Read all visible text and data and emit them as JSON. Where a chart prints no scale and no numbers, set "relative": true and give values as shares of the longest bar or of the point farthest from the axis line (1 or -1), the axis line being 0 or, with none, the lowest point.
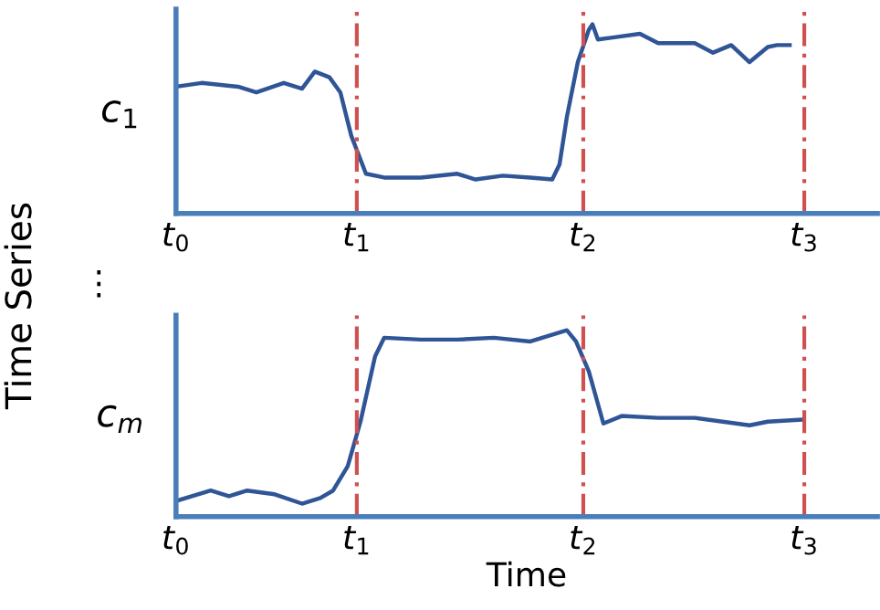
{
  "chart_data": [
    {
      "type": "line",
      "relative": true,
      "ylabel": "c$_{1}$",
      "annotations": [
        "Time Series",
        "⋮"
      ],
      "xlim": [
        0,
        3.84
      ],
      "xticks": [
        {
          "value": 0,
          "label": "t$_{0}$"
        },
        {
          "value": 0.99,
          "label": "t$_{1}$"
        },
        {
          "value": 2.23,
          "label": "t$_{2}$"
        },
        {
          "value": 3.44,
          "label": "t$_{3}$"
        }
      ],
      "ref_lines": [
        {
          "axis": "x",
          "value": 0.99,
          "color": "#d05050",
          "line_style": "dashed"
        },
        {
          "axis": "x",
          "value": 2.23,
          "color": "#d05050",
          "line_style": "dashed"
        },
        {
          "axis": "x",
          "value": 3.44,
          "color": "#d05050",
          "line_style": "dashed"
        }
      ],
      "series": [
        {
          "color": "#2f5597",
          "x": [
            0,
            0.14,
            0.34,
            0.44,
            0.59,
            0.69,
            0.76,
            0.84,
            0.9,
            0.96,
            1.04,
            1.14,
            1.34,
            1.54,
            1.64,
            1.79,
            1.94,
            2.06,
            2.1,
            2.14,
            2.2,
            2.26,
            2.28,
            2.31,
            2.39,
            2.54,
            2.64,
            2.84,
            2.94,
            3.04,
            3.14,
            3.24,
            3.29,
            3.36
          ],
          "values": [
            0.67,
            0.69,
            0.67,
            0.64,
            0.69,
            0.66,
            0.75,
            0.72,
            0.64,
            0.41,
            0.21,
            0.19,
            0.19,
            0.21,
            0.18,
            0.2,
            0.19,
            0.18,
            0.26,
            0.51,
            0.8,
            0.97,
            1,
            0.92,
            0.93,
            0.95,
            0.9,
            0.9,
            0.85,
            0.89,
            0.8,
            0.88,
            0.89,
            0.89
          ]
        }
      ],
      "line_style": "solid"
    },
    {
      "type": "line",
      "relative": true,
      "ylabel": "c$_{m}$",
      "xlabel": "Time",
      "xlim": [
        0,
        3.84
      ],
      "xticks": [
        {
          "value": 0,
          "label": "t$_{0}$"
        },
        {
          "value": 0.99,
          "label": "t$_{1}$"
        },
        {
          "value": 2.23,
          "label": "t$_{2}$"
        },
        {
          "value": 3.44,
          "label": "t$_{3}$"
        }
      ],
      "ref_lines": [
        {
          "axis": "x",
          "value": 0.99,
          "color": "#d05050",
          "line_style": "dashed"
        },
        {
          "axis": "x",
          "value": 2.23,
          "color": "#d05050",
          "line_style": "dashed"
        },
        {
          "axis": "x",
          "value": 3.44,
          "color": "#d05050",
          "line_style": "dashed"
        }
      ],
      "series": [
        {
          "color": "#2f5597",
          "x": [
            0.02,
            0.19,
            0.29,
            0.39,
            0.54,
            0.69,
            0.79,
            0.86,
            0.94,
            1.01,
            1.09,
            1.14,
            1.34,
            1.54,
            1.74,
            1.94,
            2.14,
            2.19,
            2.26,
            2.34,
            2.44,
            2.64,
            2.84,
            3.14,
            3.24,
            3.42
          ],
          "values": [
            0.09,
            0.14,
            0.11,
            0.14,
            0.12,
            0.07,
            0.1,
            0.14,
            0.27,
            0.51,
            0.86,
            0.96,
            0.95,
            0.95,
            0.96,
            0.94,
            1,
            0.94,
            0.78,
            0.5,
            0.54,
            0.53,
            0.53,
            0.49,
            0.51,
            0.52
          ]
        }
      ],
      "line_style": "solid"
    }
  ]
}
